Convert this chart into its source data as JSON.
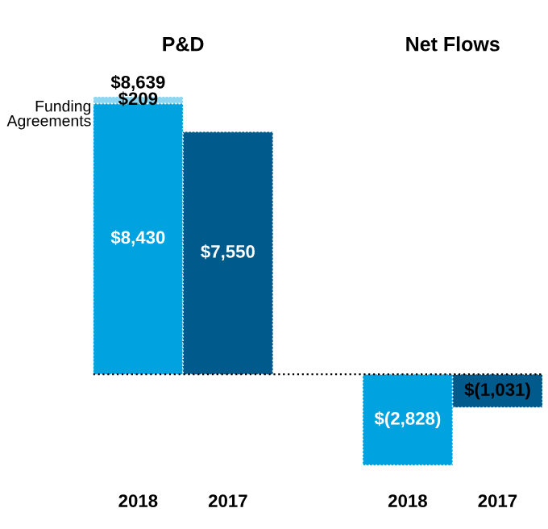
{
  "chart_data": {
    "type": "bar",
    "stacked": true,
    "categories": [
      "2018",
      "2017",
      null,
      "2018",
      "2017"
    ],
    "annotations": [
      "P&D",
      "Net Flows"
    ],
    "series": [
      {
        "colors": [
          "#00a3e0",
          "#005a8b",
          null,
          "#00a3e0",
          "#005a8b"
        ],
        "values": [
          8430,
          7550,
          null,
          -2828,
          -1031
        ],
        "value_labels": [
          "$8,430",
          "$7,550",
          null,
          "$(2,828)",
          "$(1,031)"
        ]
      },
      {
        "name": "Funding Agreements",
        "color": "#8fd6f2",
        "values": [
          209,
          null,
          null,
          null,
          null
        ],
        "value_labels": [
          "$209",
          null,
          null,
          null,
          null
        ]
      }
    ],
    "totals": [
      "$8,639",
      null,
      null,
      null,
      null
    ],
    "ref_lines": [
      {
        "axis": "y",
        "value": 0,
        "color": "#000000",
        "line_style": "dotted"
      }
    ],
    "grid": false,
    "legend": false,
    "tick_labels": "x"
  }
}
